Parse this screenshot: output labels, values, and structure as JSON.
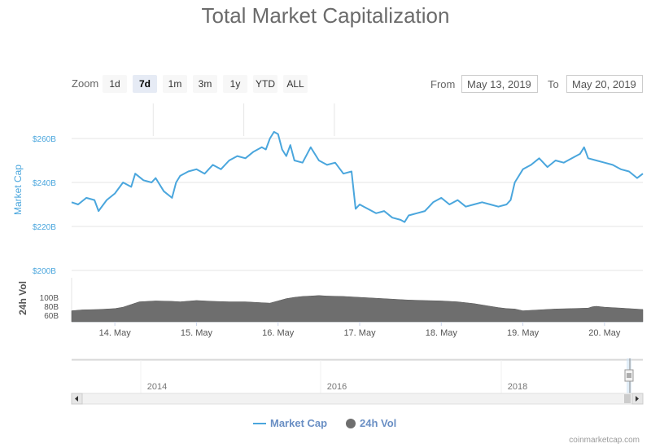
{
  "title": "Total Market Capitalization",
  "zoom": {
    "label": "Zoom",
    "buttons": [
      "1d",
      "7d",
      "1m",
      "3m",
      "1y",
      "YTD",
      "ALL"
    ],
    "active": "7d"
  },
  "range": {
    "from_label": "From",
    "from_value": "May 13, 2019",
    "to_label": "To",
    "to_value": "May 20, 2019"
  },
  "legend": {
    "market_cap": "Market Cap",
    "vol": "24h Vol"
  },
  "credits": "coinmarketcap.com",
  "colors": {
    "market_cap": "#4aa6dd",
    "vol": "#6e6e6e",
    "axis_label": "#4aa6dd"
  },
  "chart_data": [
    {
      "type": "line",
      "name": "Total Market Capitalization",
      "ylabel": "Market Cap",
      "yticks": [
        "$200B",
        "$220B",
        "$240B",
        "$260B"
      ],
      "ylim": [
        200,
        270
      ],
      "xticks": [
        "14. May",
        "15. May",
        "16. May",
        "17. May",
        "18. May",
        "19. May",
        "20. May"
      ],
      "xlim": [
        13.47,
        20.47
      ],
      "series": [
        {
          "name": "Market Cap",
          "x": [
            13.47,
            13.55,
            13.65,
            13.75,
            13.8,
            13.9,
            14.0,
            14.1,
            14.2,
            14.25,
            14.35,
            14.45,
            14.5,
            14.6,
            14.7,
            14.75,
            14.8,
            14.9,
            15.0,
            15.1,
            15.2,
            15.3,
            15.4,
            15.5,
            15.6,
            15.7,
            15.8,
            15.85,
            15.9,
            15.95,
            16.0,
            16.05,
            16.1,
            16.15,
            16.2,
            16.3,
            16.4,
            16.5,
            16.6,
            16.7,
            16.8,
            16.9,
            16.95,
            17.0,
            17.05,
            17.1,
            17.2,
            17.3,
            17.4,
            17.5,
            17.55,
            17.6,
            17.7,
            17.8,
            17.9,
            18.0,
            18.1,
            18.2,
            18.3,
            18.4,
            18.5,
            18.6,
            18.7,
            18.8,
            18.85,
            18.9,
            19.0,
            19.1,
            19.2,
            19.3,
            19.4,
            19.5,
            19.6,
            19.7,
            19.75,
            19.8,
            19.9,
            20.0,
            20.1,
            20.2,
            20.3,
            20.4,
            20.47
          ],
          "values": [
            231,
            230,
            233,
            232,
            227,
            232,
            235,
            240,
            238,
            244,
            241,
            240,
            242,
            236,
            233,
            240,
            243,
            245,
            246,
            244,
            248,
            246,
            250,
            252,
            251,
            254,
            256,
            255,
            260,
            263,
            262,
            255,
            252,
            257,
            250,
            249,
            256,
            250,
            248,
            249,
            244,
            245,
            228,
            230,
            229,
            228,
            226,
            227,
            224,
            223,
            222,
            225,
            226,
            227,
            231,
            233,
            230,
            232,
            229,
            230,
            231,
            230,
            229,
            230,
            232,
            240,
            246,
            248,
            251,
            247,
            250,
            249,
            251,
            253,
            256,
            251,
            250,
            249,
            248,
            246,
            245,
            242,
            244
          ]
        }
      ]
    },
    {
      "type": "area",
      "name": "24h Vol",
      "ylabel": "24h Vol",
      "yticks": [
        "60B",
        "80B",
        "100B"
      ],
      "ylim": [
        55,
        115
      ],
      "series": [
        {
          "name": "24h Vol",
          "x": [
            13.47,
            13.6,
            13.8,
            14.0,
            14.1,
            14.2,
            14.3,
            14.5,
            14.7,
            14.8,
            15.0,
            15.2,
            15.4,
            15.6,
            15.8,
            15.9,
            16.0,
            16.1,
            16.2,
            16.3,
            16.4,
            16.5,
            16.6,
            16.8,
            17.0,
            17.2,
            17.4,
            17.5,
            17.6,
            17.8,
            18.0,
            18.2,
            18.4,
            18.6,
            18.7,
            18.8,
            18.9,
            19.0,
            19.2,
            19.4,
            19.6,
            19.8,
            19.85,
            19.9,
            20.0,
            20.2,
            20.47
          ],
          "values": [
            70,
            72,
            73,
            75,
            78,
            84,
            90,
            92,
            91,
            90,
            93,
            91,
            90,
            90,
            88,
            87,
            92,
            97,
            100,
            102,
            103,
            104,
            103,
            102,
            100,
            98,
            96,
            95,
            94,
            93,
            92,
            90,
            86,
            80,
            77,
            75,
            74,
            70,
            72,
            74,
            75,
            76,
            79,
            80,
            78,
            76,
            73
          ]
        }
      ]
    }
  ],
  "navigator": {
    "xticks": [
      "2014",
      "2016",
      "2018"
    ]
  }
}
